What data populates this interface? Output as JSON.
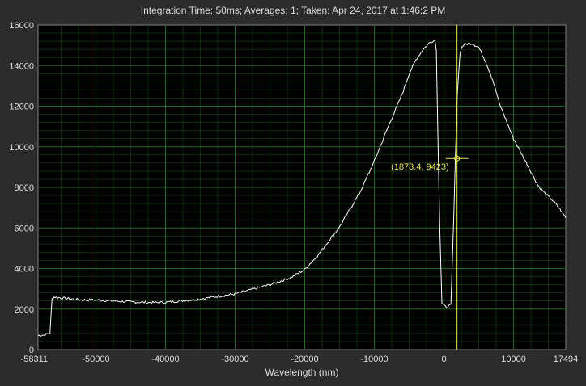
{
  "header": {
    "title": "Integration Time: 50ms;  Averages: 1;  Taken: Apr 24, 2017 at 1:46:2 PM"
  },
  "colors": {
    "background": "#2b2b2b",
    "plot_bg": "#000000",
    "grid": "#1f6b1f",
    "trace": "#ffffff",
    "cursor": "#e8e85a"
  },
  "chart_data": {
    "type": "line",
    "title": "",
    "xlabel": "Wavelength (nm)",
    "ylabel": "",
    "xlim": [
      -58311,
      17494
    ],
    "ylim": [
      0,
      16000
    ],
    "x_ticks": [
      -58311,
      -50000,
      -40000,
      -30000,
      -20000,
      -10000,
      0,
      10000,
      17494
    ],
    "y_ticks": [
      0,
      2000,
      4000,
      6000,
      8000,
      10000,
      12000,
      14000,
      16000
    ],
    "grid": true,
    "legend": "none",
    "series": [
      {
        "x": [
          -58311,
          -57500,
          -56600,
          -56300,
          -56000,
          -55000,
          -52000,
          -50000,
          -45000,
          -42000,
          -40000,
          -35000,
          -30000,
          -25000,
          -22000,
          -20000,
          -18000,
          -15000,
          -12000,
          -10000,
          -8000,
          -6000,
          -5000,
          -4000,
          -3000,
          -2000,
          -1300,
          -1100,
          -900,
          -600,
          -300,
          0,
          500,
          1000,
          1400,
          1900,
          2300,
          2600,
          3000,
          4000,
          5000,
          6000,
          7000,
          8000,
          10000,
          12000,
          13500,
          14500,
          15500,
          16500,
          17494
        ],
        "y": [
          700,
          720,
          820,
          2500,
          2600,
          2550,
          2450,
          2450,
          2350,
          2320,
          2330,
          2500,
          2750,
          3200,
          3550,
          3950,
          4700,
          6050,
          7800,
          9300,
          11000,
          12600,
          13600,
          14300,
          14800,
          15150,
          15250,
          14800,
          11000,
          6000,
          2300,
          2150,
          2100,
          2200,
          6500,
          12500,
          14600,
          14950,
          15050,
          15100,
          14900,
          14200,
          13300,
          12100,
          10400,
          9100,
          8100,
          7700,
          7400,
          7000,
          6500
        ]
      }
    ],
    "cursor": {
      "x": 1878.4,
      "y": 9423,
      "label": "(1878.4, 9423)"
    }
  }
}
